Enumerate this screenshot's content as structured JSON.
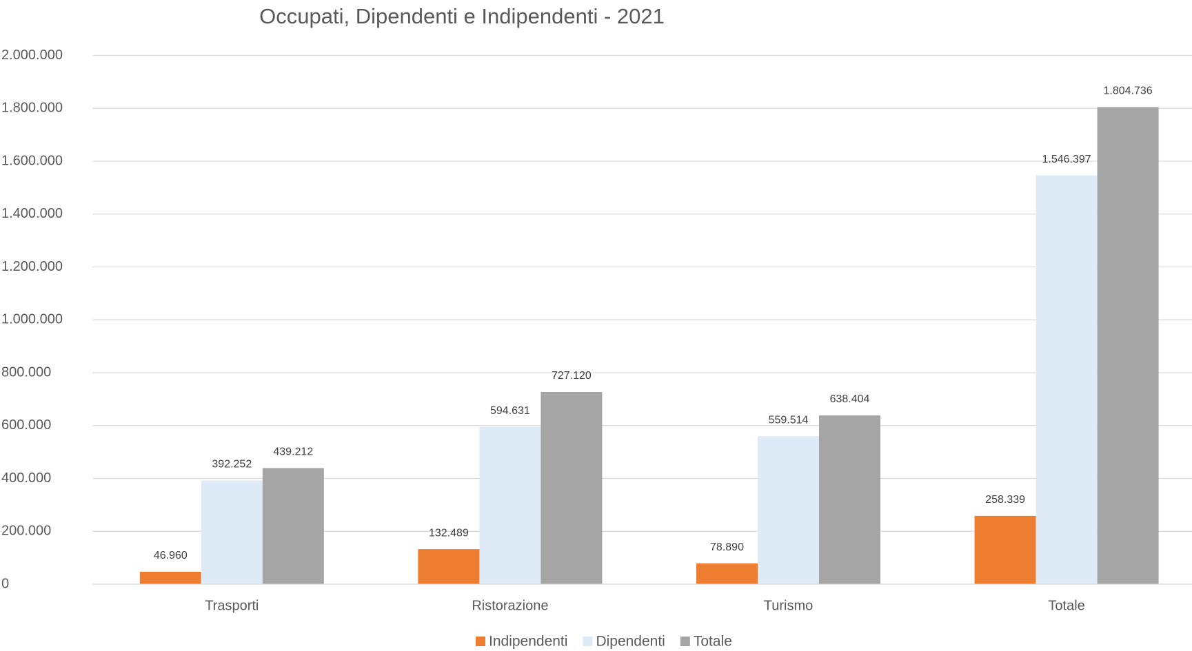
{
  "chart_data": {
    "type": "bar",
    "title": "Occupati, Dipendenti e Indipendenti -  2021",
    "categories": [
      "Trasporti",
      "Ristorazione",
      "Turismo",
      "Totale"
    ],
    "series": [
      {
        "name": "Indipendenti",
        "color": "#ed7d31",
        "values": [
          46960,
          132489,
          78890,
          258339
        ],
        "value_labels": [
          "46.960",
          "132.489",
          "78.890",
          "258.339"
        ]
      },
      {
        "name": "Dipendenti",
        "color": "#deebf7",
        "values": [
          392252,
          594631,
          559514,
          1546397
        ],
        "value_labels": [
          "392.252",
          "594.631",
          "559.514",
          "1.546.397"
        ]
      },
      {
        "name": "Totale",
        "color": "#a5a5a5",
        "values": [
          439212,
          727120,
          638404,
          1804736
        ],
        "value_labels": [
          "439.212",
          "727.120",
          "638.404",
          "1.804.736"
        ]
      }
    ],
    "ylim": [
      0,
      2000000
    ],
    "yticks": [
      0,
      {
        "value": 200000,
        "label": "200.000"
      },
      {
        "value": 400000,
        "label": "400.000"
      },
      {
        "value": 600000,
        "label": "600.000"
      },
      {
        "value": 800000,
        "label": "800.000"
      },
      {
        "value": 1000000,
        "label": "1.000.000"
      },
      {
        "value": 1200000,
        "label": "1.200.000"
      },
      {
        "value": 1400000,
        "label": "1.400.000"
      },
      {
        "value": 1600000,
        "label": "1.600.000"
      },
      {
        "value": 1800000,
        "label": "1.800.000"
      },
      {
        "value": 2000000,
        "label": "2.000.000"
      }
    ],
    "grid": true,
    "legend": "bottom"
  }
}
